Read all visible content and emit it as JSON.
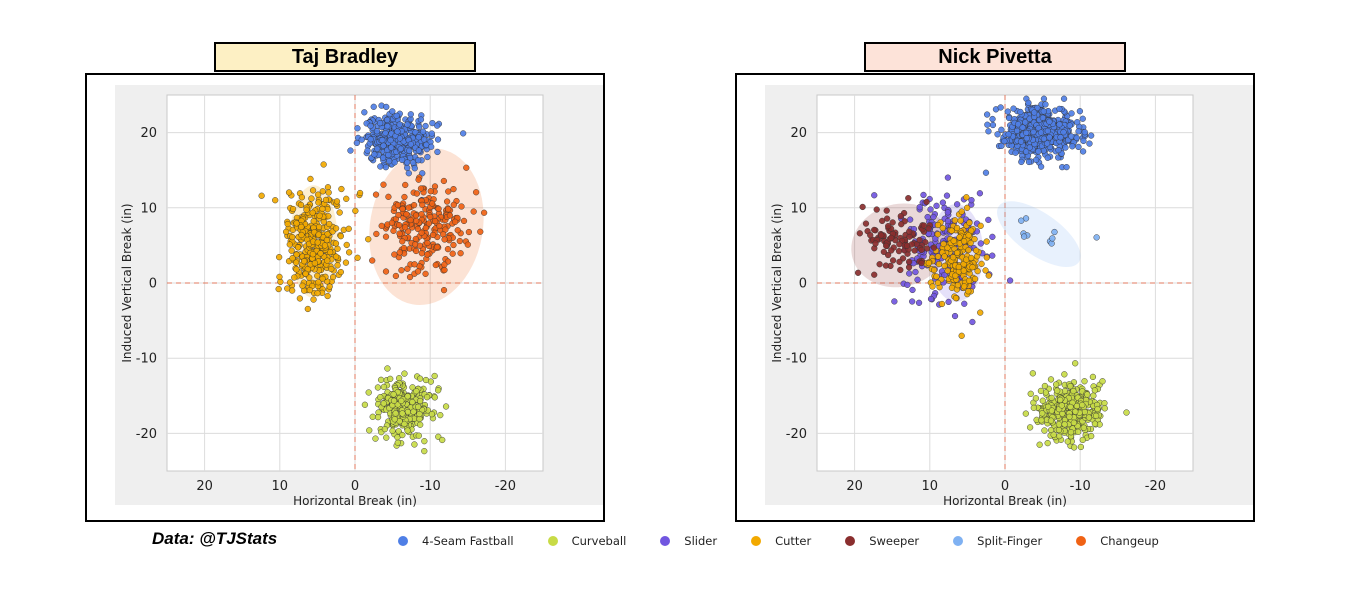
{
  "credit": "Data: @TJStats",
  "legend": [
    {
      "label": "4-Seam Fastball",
      "color": "#4f7fe6"
    },
    {
      "label": "Curveball",
      "color": "#c8db46"
    },
    {
      "label": "Slider",
      "color": "#7156e0"
    },
    {
      "label": "Cutter",
      "color": "#f2a900"
    },
    {
      "label": "Sweeper",
      "color": "#8a2e2e"
    },
    {
      "label": "Split-Finger",
      "color": "#7fb1f2"
    },
    {
      "label": "Changeup",
      "color": "#f06214"
    }
  ],
  "chart_data": [
    {
      "type": "scatter",
      "title": "Taj Bradley",
      "title_bg": "#fdf0c4",
      "xlabel": "Horizontal Break (in)",
      "ylabel": "Induced Vertical Break (in)",
      "xlim": [
        25,
        -25
      ],
      "ylim": [
        -25,
        25
      ],
      "xticks": [
        20,
        10,
        0,
        -10,
        -20
      ],
      "yticks": [
        20,
        10,
        0,
        -10,
        -20
      ],
      "grid": true,
      "series": [
        {
          "name": "4-Seam Fastball",
          "color": "#4f7fe6",
          "count": 360,
          "center": [
            -5.5,
            19
          ],
          "spread": [
            2.2,
            1.9
          ],
          "ellipse": null
        },
        {
          "name": "Cutter",
          "color": "#f2a900",
          "count": 340,
          "center": [
            5.5,
            5.5
          ],
          "spread": [
            2.0,
            3.6
          ],
          "ellipse": {
            "cx": 5.5,
            "cy": 5.5,
            "rx": 3.2,
            "ry": 7.5,
            "angle": 0
          }
        },
        {
          "name": "Changeup",
          "color": "#f06214",
          "count": 230,
          "center": [
            -9.5,
            7.5
          ],
          "spread": [
            3.0,
            3.0
          ],
          "ellipse": {
            "cx": -9.5,
            "cy": 7.5,
            "rx": 7.5,
            "ry": 10.5,
            "angle": 10
          }
        },
        {
          "name": "Curveball",
          "color": "#c8db46",
          "count": 260,
          "center": [
            -6.5,
            -16.5
          ],
          "spread": [
            2.0,
            1.9
          ],
          "ellipse": null
        }
      ]
    },
    {
      "type": "scatter",
      "title": "Nick Pivetta",
      "title_bg": "#fde3d9",
      "xlabel": "Horizontal Break (in)",
      "ylabel": "Induced Vertical Break (in)",
      "xlim": [
        25,
        -25
      ],
      "ylim": [
        -25,
        25
      ],
      "xticks": [
        20,
        10,
        0,
        -10,
        -20
      ],
      "yticks": [
        20,
        10,
        0,
        -10,
        -20
      ],
      "grid": true,
      "series": [
        {
          "name": "4-Seam Fastball",
          "color": "#4f7fe6",
          "count": 520,
          "center": [
            -4.5,
            20
          ],
          "spread": [
            2.6,
            1.6
          ],
          "ellipse": null
        },
        {
          "name": "Curveball",
          "color": "#c8db46",
          "count": 380,
          "center": [
            -8.5,
            -17
          ],
          "spread": [
            2.0,
            2.0
          ],
          "ellipse": null
        },
        {
          "name": "Slider",
          "color": "#7156e0",
          "count": 190,
          "center": [
            8,
            5
          ],
          "spread": [
            2.8,
            4.0
          ],
          "ellipse": {
            "cx": 6.5,
            "cy": 4,
            "rx": 3.6,
            "ry": 6.5,
            "angle": 0
          }
        },
        {
          "name": "Cutter",
          "color": "#f2a900",
          "count": 190,
          "center": [
            6,
            3.5
          ],
          "spread": [
            1.7,
            2.8
          ],
          "ellipse": null
        },
        {
          "name": "Sweeper",
          "color": "#8a2e2e",
          "count": 100,
          "center": [
            15,
            5.5
          ],
          "spread": [
            2.6,
            2.4
          ],
          "ellipse": {
            "cx": 14,
            "cy": 5,
            "rx": 6.5,
            "ry": 5.5,
            "angle": -15
          }
        },
        {
          "name": "Split-Finger",
          "color": "#7fb1f2",
          "count": 10,
          "center": [
            -5,
            6.5
          ],
          "spread": [
            2.3,
            1.6
          ],
          "ellipse": {
            "cx": -4.5,
            "cy": 6.5,
            "rx": 6.5,
            "ry": 2.8,
            "angle": 35
          }
        }
      ]
    }
  ]
}
